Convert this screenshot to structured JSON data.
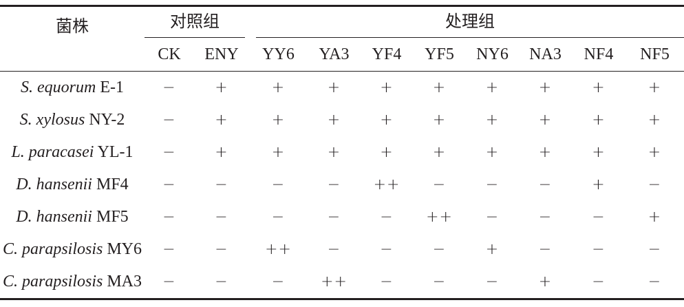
{
  "header": {
    "strain_label": "菌株",
    "control_group_label": "对照组",
    "treatment_group_label": "处理组",
    "columns": [
      "CK",
      "ENY",
      "YY6",
      "YA3",
      "YF4",
      "YF5",
      "NY6",
      "NA3",
      "NF4",
      "NF5"
    ]
  },
  "rows": [
    {
      "genus": "S. equorum",
      "strain": " E-1",
      "values": [
        "−",
        "+",
        "+",
        "+",
        "+",
        "+",
        "+",
        "+",
        "+",
        "+"
      ]
    },
    {
      "genus": "S. xylosus",
      "strain": " NY-2",
      "values": [
        "−",
        "+",
        "+",
        "+",
        "+",
        "+",
        "+",
        "+",
        "+",
        "+"
      ]
    },
    {
      "genus": "L. paracasei",
      "strain": " YL-1",
      "values": [
        "−",
        "+",
        "+",
        "+",
        "+",
        "+",
        "+",
        "+",
        "+",
        "+"
      ]
    },
    {
      "genus": "D. hansenii",
      "strain": " MF4",
      "values": [
        "−",
        "−",
        "−",
        "−",
        "++",
        "−",
        "−",
        "−",
        "+",
        "−"
      ]
    },
    {
      "genus": "D. hansenii",
      "strain": " MF5",
      "values": [
        "−",
        "−",
        "−",
        "−",
        "−",
        "++",
        "−",
        "−",
        "−",
        "+"
      ]
    },
    {
      "genus": "C. parapsilosis",
      "strain": " MY6",
      "values": [
        "−",
        "−",
        "++",
        "−",
        "−",
        "−",
        "+",
        "−",
        "−",
        "−"
      ]
    },
    {
      "genus": "C. parapsilosis",
      "strain": " MA3",
      "values": [
        "−",
        "−",
        "−",
        "++",
        "−",
        "−",
        "−",
        "+",
        "−",
        "−"
      ]
    }
  ]
}
